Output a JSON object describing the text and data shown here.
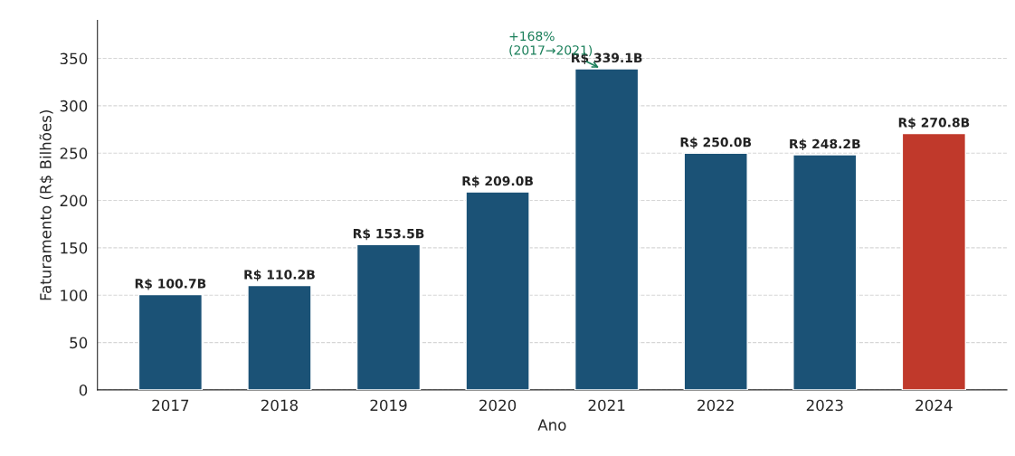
{
  "chart_data": {
    "type": "bar",
    "xlabel": "Ano",
    "ylabel": "Faturamento (R$ Bilhões)",
    "categories": [
      "2017",
      "2018",
      "2019",
      "2020",
      "2021",
      "2022",
      "2023",
      "2024"
    ],
    "values": [
      100.7,
      110.2,
      153.5,
      209.0,
      339.1,
      250.0,
      248.2,
      270.8
    ],
    "colors": [
      "#1b5276",
      "#1b5276",
      "#1b5276",
      "#1b5276",
      "#1b5276",
      "#1b5276",
      "#1b5276",
      "#c0392b"
    ],
    "value_labels": [
      "R$ 100.7B",
      "R$ 110.2B",
      "R$ 153.5B",
      "R$ 209.0B",
      "R$ 339.1B",
      "R$ 250.0B",
      "R$ 248.2B",
      "R$ 270.8B"
    ],
    "ylim": [
      0,
      390
    ],
    "yticks": [
      0,
      50,
      100,
      150,
      200,
      250,
      300,
      350
    ],
    "grid": "y",
    "annotations": [
      {
        "text": "+168%\n(2017→2021)",
        "x": "2021",
        "y": 339.1
      }
    ]
  }
}
